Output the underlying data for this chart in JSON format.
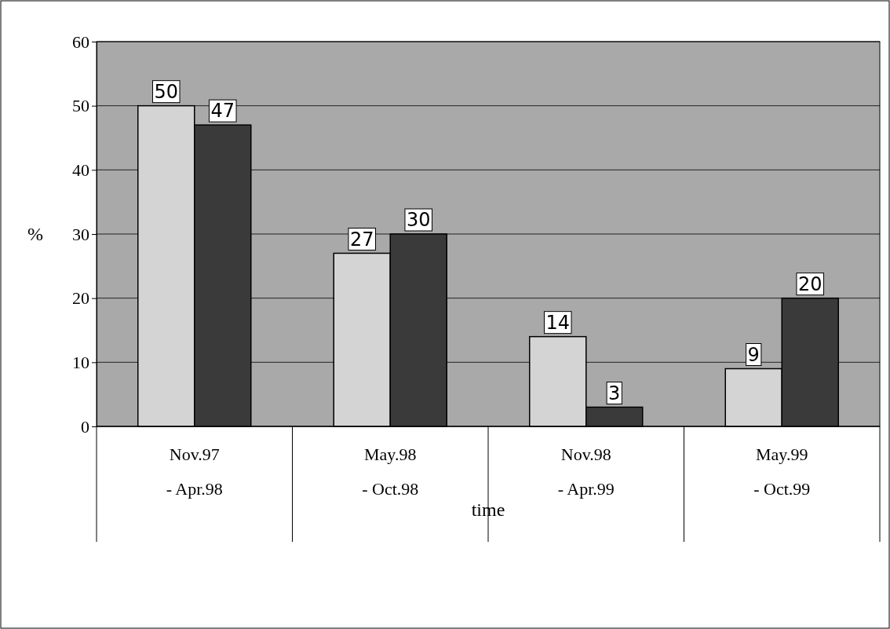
{
  "chart_data": {
    "type": "bar",
    "xlabel": "time",
    "ylabel": "%",
    "categories": [
      "Nov.97\n- Apr.98",
      "May.98\n- Oct.98",
      "Nov.98\n- Apr.99",
      "May.99\n- Oct.99"
    ],
    "series": [
      {
        "color": "#d4d4d4",
        "values": [
          50,
          27,
          14,
          9
        ]
      },
      {
        "color": "#3a3a3a",
        "values": [
          47,
          30,
          3,
          20
        ]
      }
    ],
    "ylim": [
      0,
      60
    ],
    "yticks": [
      0,
      10,
      20,
      30,
      40,
      50,
      60
    ],
    "grid": "y",
    "data_labels": true
  }
}
